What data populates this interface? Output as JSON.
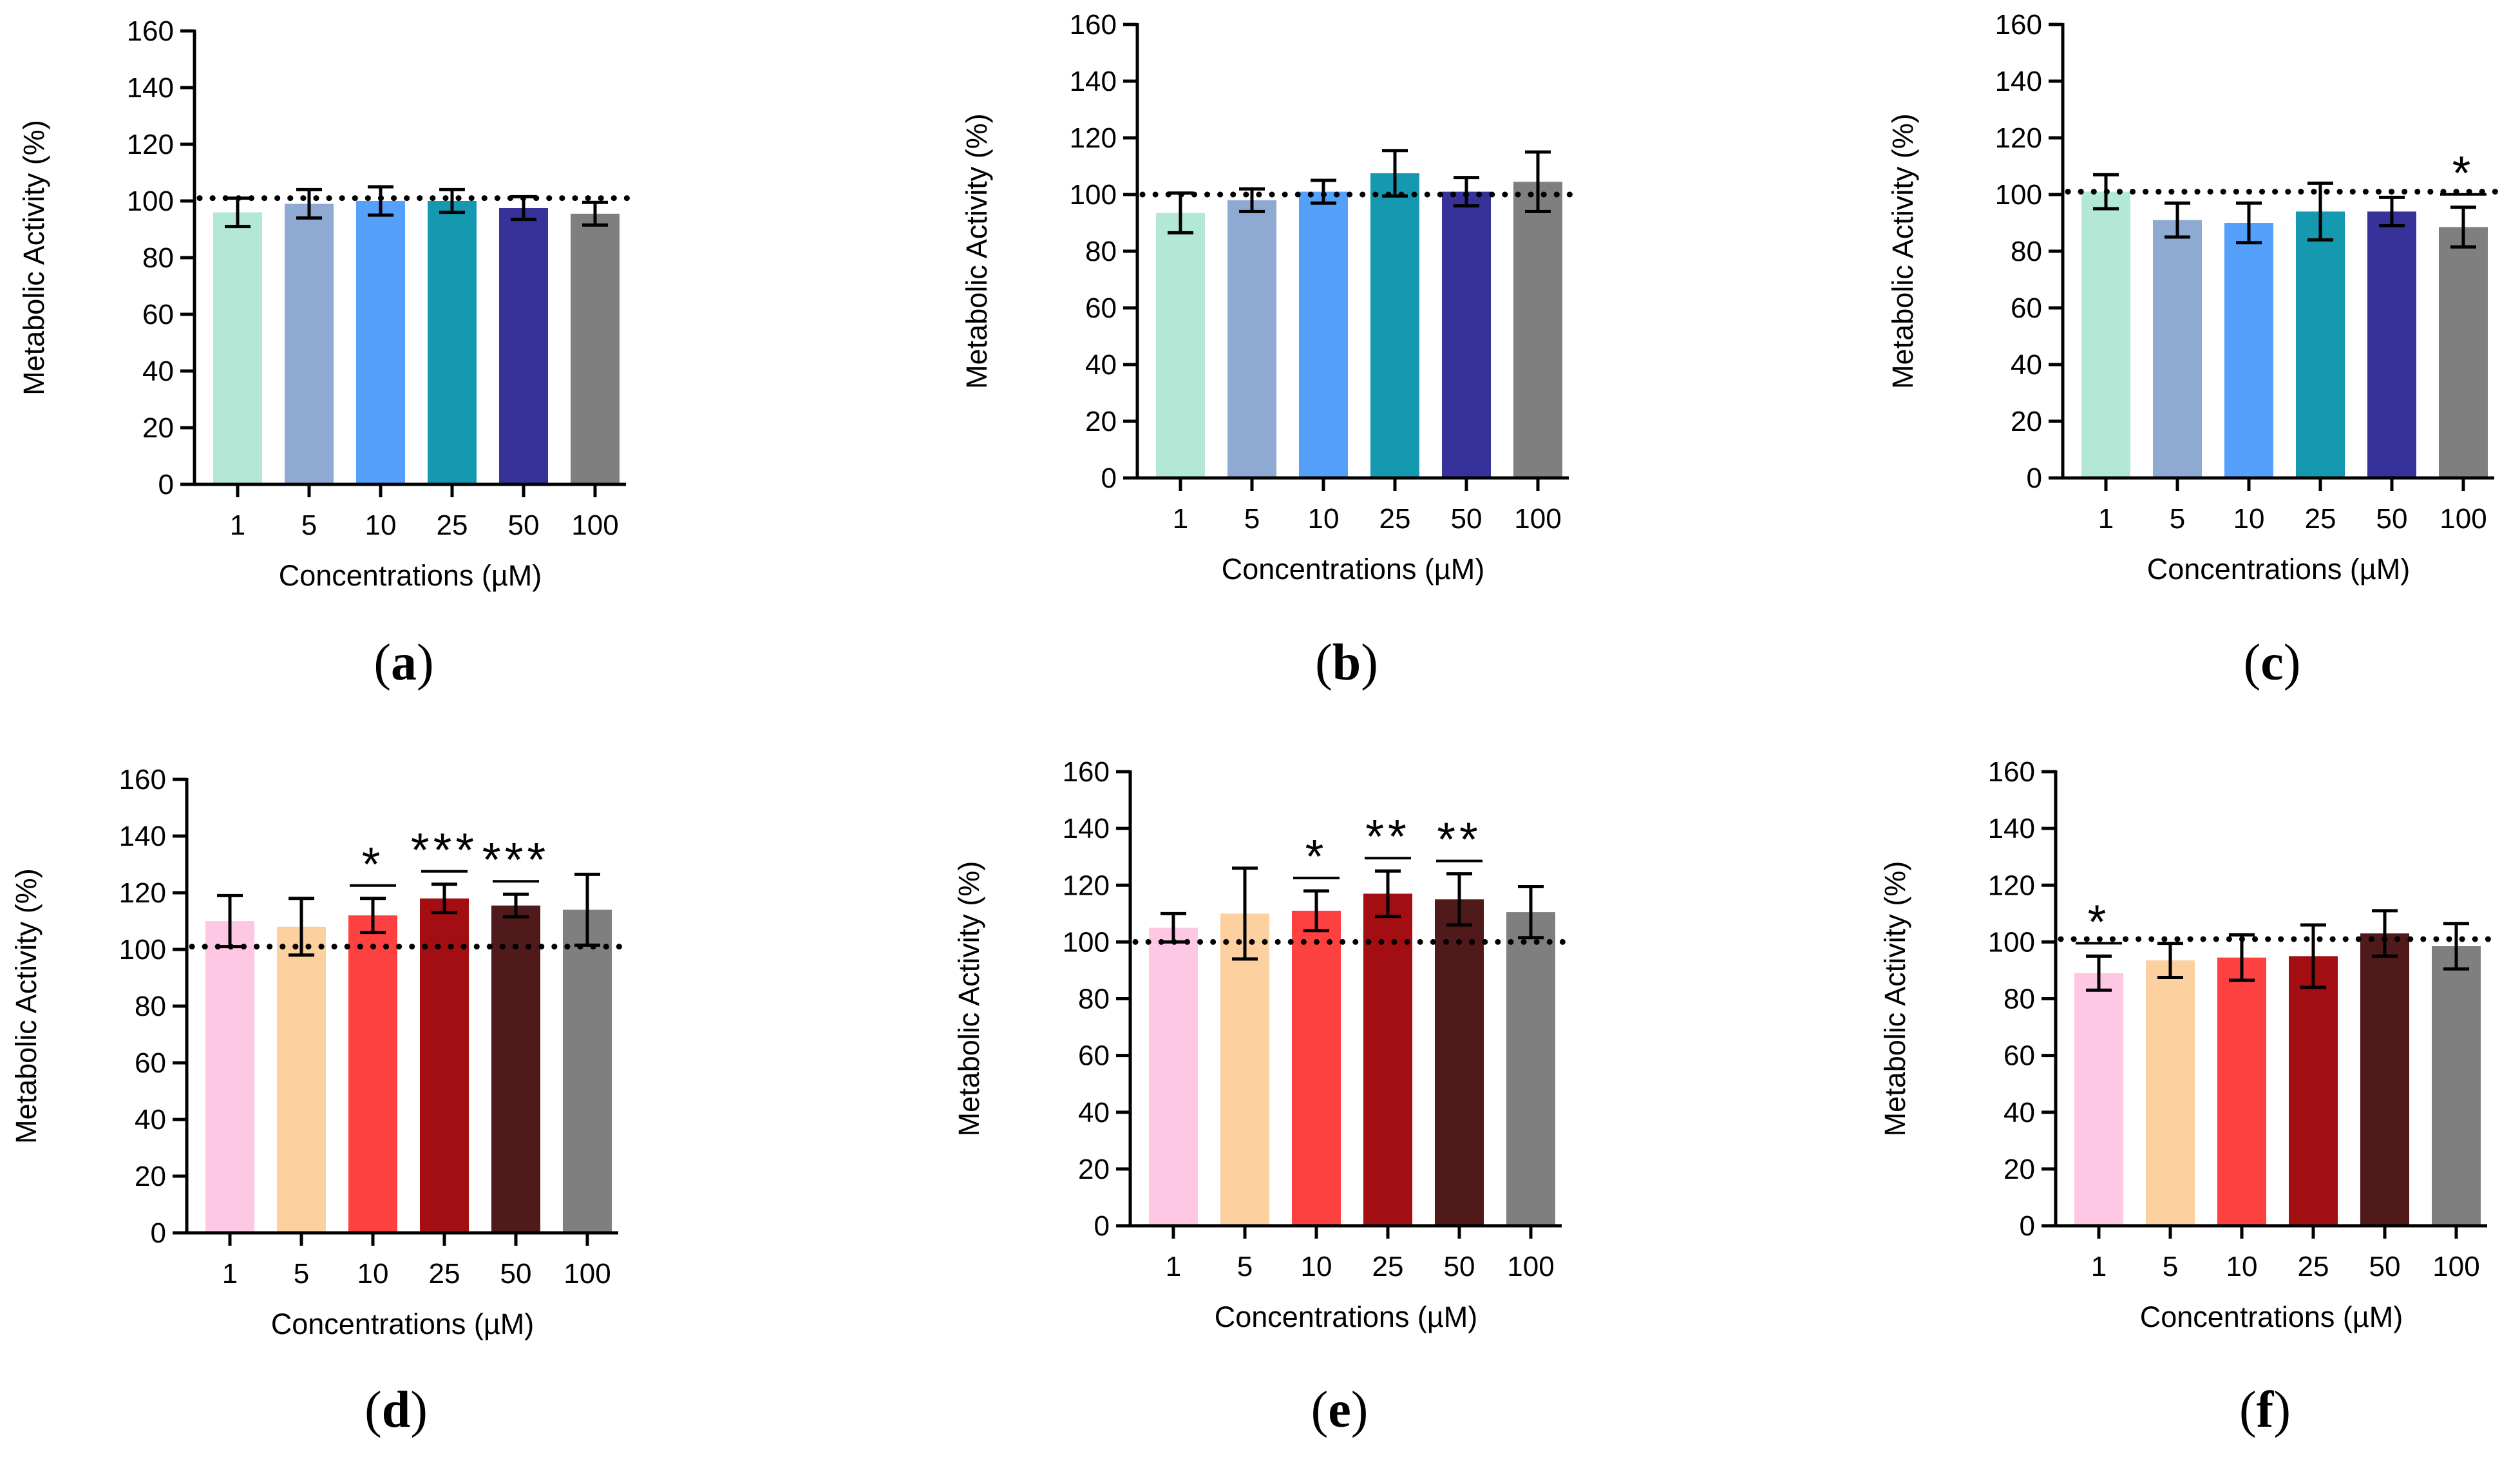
{
  "chart_data": [
    {
      "panel": "a",
      "type": "bar",
      "categories": [
        "1",
        "5",
        "10",
        "25",
        "50",
        "100"
      ],
      "values": [
        96,
        99,
        100,
        100,
        97.5,
        95.5
      ],
      "errors": [
        5,
        5,
        5,
        4,
        4,
        4
      ],
      "colors": [
        "#b4e8d6",
        "#8eaad2",
        "#54a0fb",
        "#1599b1",
        "#36329a",
        "#7f7f7f"
      ],
      "significance": [
        "",
        "",
        "",
        "",
        "",
        ""
      ],
      "reference_line": 101,
      "xlabel": "Concentrations (µM)",
      "ylabel": "Metabolic Activity (%)",
      "ylim": [
        0,
        160
      ],
      "yticks": [
        0,
        20,
        40,
        60,
        80,
        100,
        120,
        140,
        160
      ]
    },
    {
      "panel": "b",
      "type": "bar",
      "categories": [
        "1",
        "5",
        "10",
        "25",
        "50",
        "100"
      ],
      "values": [
        93.5,
        98,
        101,
        107.5,
        101,
        104.5
      ],
      "errors": [
        7,
        4,
        4,
        8,
        5,
        10.5
      ],
      "colors": [
        "#b4e8d6",
        "#8eaad2",
        "#54a0fb",
        "#1599b1",
        "#36329a",
        "#7f7f7f"
      ],
      "significance": [
        "",
        "",
        "",
        "",
        "",
        ""
      ],
      "reference_line": 100,
      "xlabel": "Concentrations (µM)",
      "ylabel": "Metabolic Activity (%)",
      "ylim": [
        0,
        160
      ],
      "yticks": [
        0,
        20,
        40,
        60,
        80,
        100,
        120,
        140,
        160
      ]
    },
    {
      "panel": "c",
      "type": "bar",
      "categories": [
        "1",
        "5",
        "10",
        "25",
        "50",
        "100"
      ],
      "values": [
        101,
        91,
        90,
        94,
        94,
        88.5
      ],
      "errors": [
        6,
        6,
        7,
        10,
        5,
        7
      ],
      "colors": [
        "#b4e8d6",
        "#8eaad2",
        "#54a0fb",
        "#1599b1",
        "#36329a",
        "#7f7f7f"
      ],
      "significance": [
        "",
        "",
        "",
        "",
        "",
        "*"
      ],
      "reference_line": 101,
      "xlabel": "Concentrations (µM)",
      "ylabel": "Metabolic Activity (%)",
      "ylim": [
        0,
        160
      ],
      "yticks": [
        0,
        20,
        40,
        60,
        80,
        100,
        120,
        140,
        160
      ]
    },
    {
      "panel": "d",
      "type": "bar",
      "categories": [
        "1",
        "5",
        "10",
        "25",
        "50",
        "100"
      ],
      "values": [
        110,
        108,
        112,
        118,
        115.5,
        114
      ],
      "errors": [
        9,
        10,
        6,
        5,
        4,
        12.5
      ],
      "colors": [
        "#fec8e4",
        "#fdd09f",
        "#fd4140",
        "#a30e13",
        "#501a1b",
        "#7f7f7f"
      ],
      "significance": [
        "",
        "",
        "*",
        "***",
        "***",
        ""
      ],
      "reference_line": 101,
      "xlabel": "Concentrations (µM)",
      "ylabel": "Metabolic Activity (%)",
      "ylim": [
        0,
        160
      ],
      "yticks": [
        0,
        20,
        40,
        60,
        80,
        100,
        120,
        140,
        160
      ]
    },
    {
      "panel": "e",
      "type": "bar",
      "categories": [
        "1",
        "5",
        "10",
        "25",
        "50",
        "100"
      ],
      "values": [
        105,
        110,
        111,
        117,
        115,
        110.5
      ],
      "errors": [
        5,
        16,
        7,
        8,
        9,
        9
      ],
      "colors": [
        "#fec8e4",
        "#fdd09f",
        "#fd4140",
        "#a30e13",
        "#501a1b",
        "#7f7f7f"
      ],
      "significance": [
        "",
        "",
        "*",
        "**",
        "**",
        ""
      ],
      "reference_line": 100,
      "xlabel": "Concentrations (µM)",
      "ylabel": "Metabolic Activity (%)",
      "ylim": [
        0,
        160
      ],
      "yticks": [
        0,
        20,
        40,
        60,
        80,
        100,
        120,
        140,
        160
      ]
    },
    {
      "panel": "f",
      "type": "bar",
      "categories": [
        "1",
        "5",
        "10",
        "25",
        "50",
        "100"
      ],
      "values": [
        89,
        93.5,
        94.5,
        95,
        103,
        98.5
      ],
      "errors": [
        6,
        6,
        8,
        11,
        8,
        8
      ],
      "colors": [
        "#fec8e4",
        "#fdd09f",
        "#fd4140",
        "#a30e13",
        "#501a1b",
        "#7f7f7f"
      ],
      "significance": [
        "*",
        "",
        "",
        "",
        "",
        ""
      ],
      "reference_line": 101,
      "xlabel": "Concentrations (µM)",
      "ylabel": "Metabolic Activity (%)",
      "ylim": [
        0,
        160
      ],
      "yticks": [
        0,
        20,
        40,
        60,
        80,
        100,
        120,
        140,
        160
      ]
    }
  ]
}
